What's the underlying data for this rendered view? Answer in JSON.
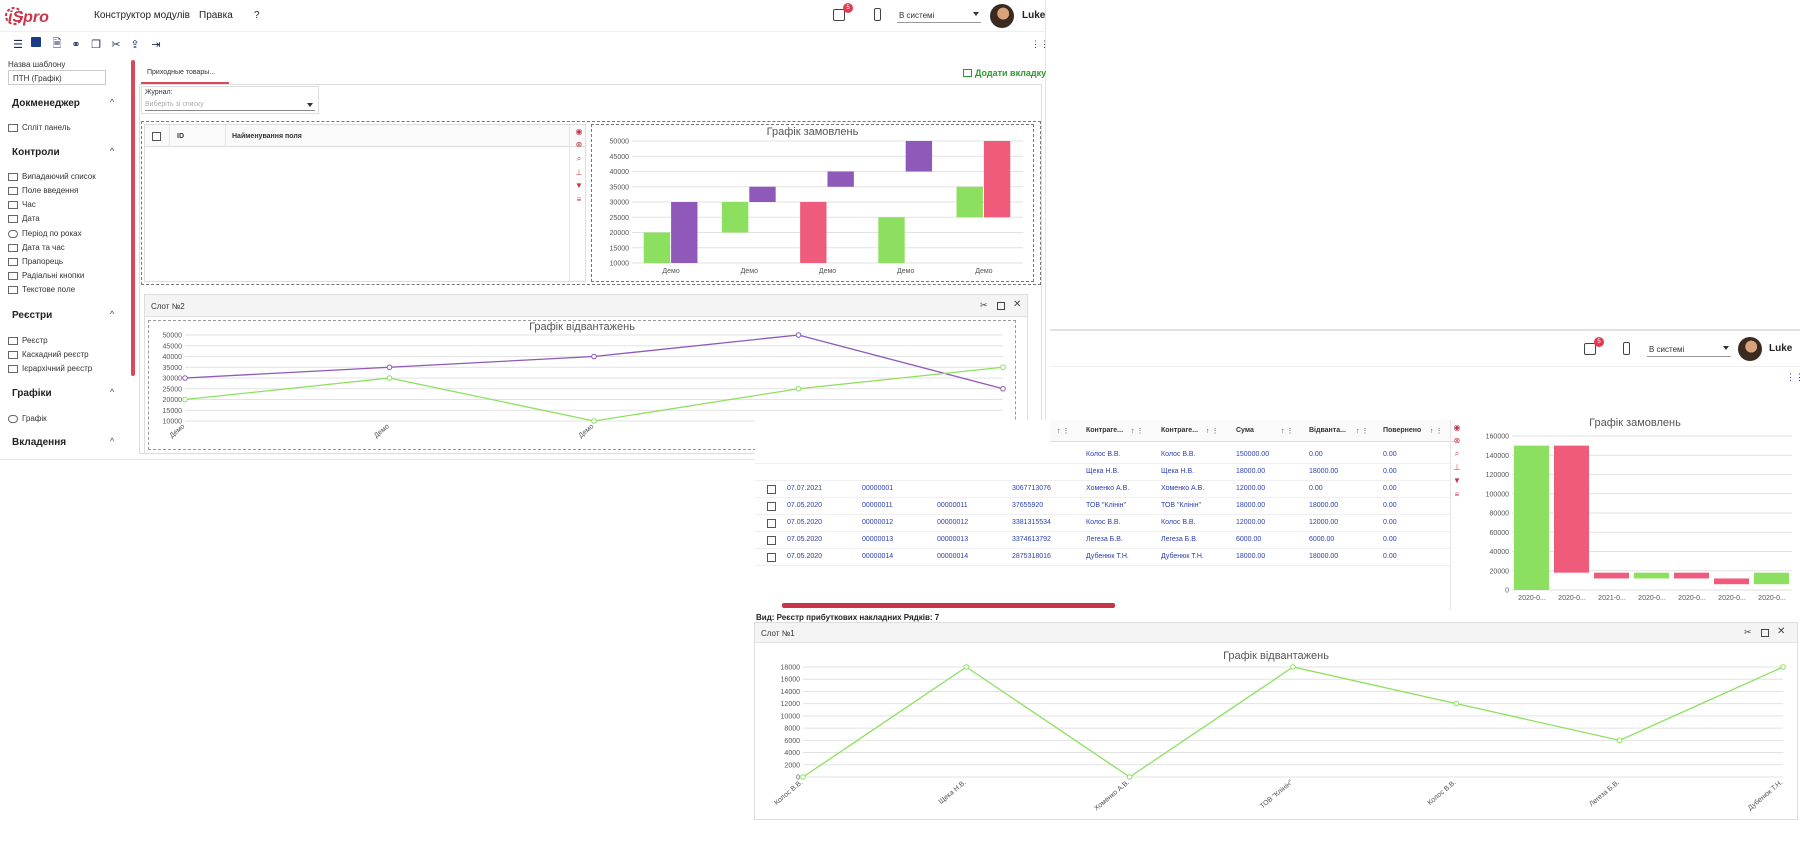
{
  "app": {
    "logo_text": "iSpro",
    "menu": [
      "Конструктор модулів",
      "Правка",
      "?"
    ],
    "notif_count": "5",
    "status_select": "В системі",
    "user_name": "Luke"
  },
  "sidebar": {
    "template_label": "Назва шаблону",
    "template_value": "ПТН (Графік)",
    "sections": [
      {
        "title": "Докменеджер",
        "items": [
          "Спліт панель"
        ]
      },
      {
        "title": "Контроли",
        "items": [
          "Випадаючий список",
          "Поле введення",
          "Час",
          "Дата",
          "Період по роках",
          "Дата та час",
          "Прапорець",
          "Радіальні кнопки",
          "Текстове поле"
        ]
      },
      {
        "title": "Реєстри",
        "items": [
          "Реєстр",
          "Каскадний реєстр",
          "Ієрархічний реєстр"
        ]
      },
      {
        "title": "Графіки",
        "items": [
          "Графік"
        ]
      },
      {
        "title": "Вкладення",
        "items": []
      }
    ]
  },
  "designer": {
    "tab_label": "Приходные товары...",
    "add_tab": "Додати вкладку",
    "journal_label": "Журнал:",
    "journal_placeholder": "Виберіть зі списку",
    "grid_headers": [
      "ID",
      "Найменування поля"
    ],
    "slot2_title": "Слот №2"
  },
  "chart_orders_small": {
    "type": "bar",
    "title": "Графік замовлень",
    "categories": [
      "Демо",
      "Демо",
      "Демо",
      "Демо",
      "Демо"
    ],
    "ylim": [
      10000,
      50000
    ],
    "yticks": [
      50000,
      45000,
      40000,
      35000,
      30000,
      25000,
      20000,
      15000,
      10000
    ],
    "bars": [
      {
        "cat": 0,
        "low": 10000,
        "high": 20000,
        "color": "#8de05f"
      },
      {
        "cat": 0,
        "low": 10000,
        "high": 30000,
        "color": "#8e59b8"
      },
      {
        "cat": 1,
        "low": 20000,
        "high": 30000,
        "color": "#8de05f"
      },
      {
        "cat": 1,
        "low": 30000,
        "high": 35000,
        "color": "#8e59b8"
      },
      {
        "cat": 2,
        "low": 10000,
        "high": 30000,
        "color": "#ef5b7b"
      },
      {
        "cat": 2,
        "low": 35000,
        "high": 40000,
        "color": "#8e59b8"
      },
      {
        "cat": 3,
        "low": 10000,
        "high": 25000,
        "color": "#8de05f"
      },
      {
        "cat": 3,
        "low": 40000,
        "high": 50000,
        "color": "#8e59b8"
      },
      {
        "cat": 4,
        "low": 25000,
        "high": 35000,
        "color": "#8de05f"
      },
      {
        "cat": 4,
        "low": 25000,
        "high": 50000,
        "color": "#ef5b7b"
      }
    ]
  },
  "chart_shipments_small": {
    "type": "line",
    "title": "Графік відвантажень",
    "categories": [
      "Демо",
      "Демо",
      "Демо",
      "Демо",
      "Демо"
    ],
    "ylim": [
      10000,
      50000
    ],
    "yticks": [
      50000,
      45000,
      40000,
      35000,
      30000,
      25000,
      20000,
      15000,
      10000
    ],
    "series": [
      {
        "color": "#8e59b8",
        "values": [
          30000,
          35000,
          40000,
          50000,
          25000
        ]
      },
      {
        "color": "#8de05f",
        "values": [
          20000,
          30000,
          10000,
          25000,
          35000
        ]
      }
    ]
  },
  "registry": {
    "headers": [
      "Контраге...",
      "Контраге...",
      "Сума",
      "Відванта...",
      "Повернено"
    ],
    "rows": [
      {
        "date": "",
        "num": "",
        "num2": "",
        "code": "",
        "c1": "Колос В.В.",
        "c2": "Колос В.В.",
        "sum": "150000.00",
        "ship": "0.00",
        "ret": "0.00"
      },
      {
        "date": "",
        "num": "",
        "num2": "",
        "code": "",
        "c1": "Щека Н.В.",
        "c2": "Щека Н.В.",
        "sum": "18000.00",
        "ship": "18000.00",
        "ret": "0.00"
      },
      {
        "date": "07.07.2021",
        "num": "00000001",
        "num2": "",
        "code": "3067713076",
        "c1": "Хоменко А.В.",
        "c2": "Хоменко А.В.",
        "sum": "12000.00",
        "ship": "0.00",
        "ret": "0.00"
      },
      {
        "date": "07.05.2020",
        "num": "00000011",
        "num2": "00000011",
        "code": "37655920",
        "c1": "ТОВ \"Клінін\"",
        "c2": "ТОВ \"Клінін\"",
        "sum": "18000.00",
        "ship": "18000.00",
        "ret": "0.00"
      },
      {
        "date": "07.05.2020",
        "num": "00000012",
        "num2": "00000012",
        "code": "3381315534",
        "c1": "Колос В.В.",
        "c2": "Колос В.В.",
        "sum": "12000.00",
        "ship": "12000.00",
        "ret": "0.00"
      },
      {
        "date": "07.05.2020",
        "num": "00000013",
        "num2": "00000013",
        "code": "3374613792",
        "c1": "Легеза Б.В.",
        "c2": "Легеза Б.В.",
        "sum": "6000.00",
        "ship": "6000.00",
        "ret": "0.00"
      },
      {
        "date": "07.05.2020",
        "num": "00000014",
        "num2": "00000014",
        "code": "2875318016",
        "c1": "Дубенюк Т.Н.",
        "c2": "Дубенюк Т.Н.",
        "sum": "18000.00",
        "ship": "18000.00",
        "ret": "0.00"
      }
    ],
    "footer": "Вид: Реєстр прибуткових накладних   Рядків: 7",
    "slot1_title": "Слот №1"
  },
  "chart_orders_big": {
    "type": "bar",
    "title": "Графік замовлень",
    "categories": [
      "2020-0...",
      "2020-0...",
      "2021-0...",
      "2020-0...",
      "2020-0...",
      "2020-0...",
      "2020-0..."
    ],
    "ylim": [
      0,
      160000
    ],
    "yticks": [
      160000,
      140000,
      120000,
      100000,
      80000,
      60000,
      40000,
      20000,
      0
    ],
    "bars": [
      {
        "cat": 0,
        "low": 0,
        "high": 150000,
        "color": "#8de05f"
      },
      {
        "cat": 1,
        "low": 18000,
        "high": 150000,
        "color": "#ef5b7b"
      },
      {
        "cat": 2,
        "low": 12000,
        "high": 18000,
        "color": "#ef5b7b"
      },
      {
        "cat": 3,
        "low": 12000,
        "high": 18000,
        "color": "#8de05f"
      },
      {
        "cat": 4,
        "low": 12000,
        "high": 18000,
        "color": "#ef5b7b"
      },
      {
        "cat": 5,
        "low": 6000,
        "high": 12000,
        "color": "#ef5b7b"
      },
      {
        "cat": 6,
        "low": 6000,
        "high": 18000,
        "color": "#8de05f"
      }
    ]
  },
  "chart_shipments_big": {
    "type": "line",
    "title": "Графік відвантажень",
    "categories": [
      "Колос В.В.",
      "Щека Н.В.",
      "Хоменко А.В.",
      "ТОВ \"Клінін\"",
      "Колос В.В.",
      "Легеза Б.В.",
      "Дубенюк Т.Н."
    ],
    "ylim": [
      0,
      18000
    ],
    "yticks": [
      18000,
      16000,
      14000,
      12000,
      10000,
      8000,
      6000,
      4000,
      2000,
      0
    ],
    "series": [
      {
        "color": "#8de05f",
        "values": [
          0,
          18000,
          0,
          18000,
          12000,
          6000,
          18000
        ]
      }
    ]
  },
  "win2": {
    "status_select": "В системі",
    "user_name": "Luke",
    "notif_count": "5"
  }
}
